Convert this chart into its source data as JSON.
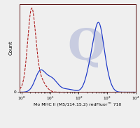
{
  "xlabel": "Mo MHC II (M5/114.15.2) redFluor™ 710",
  "ylabel": "Count",
  "xmin": 0.85,
  "xmax": 10000,
  "ymin": 0,
  "ymax": 1.05,
  "solid_color": "#1a35c8",
  "dashed_color": "#aa1111",
  "background_color": "#efefef",
  "watermark_color": "#c8cce0",
  "figsize": [
    2.0,
    1.84
  ],
  "dpi": 100
}
